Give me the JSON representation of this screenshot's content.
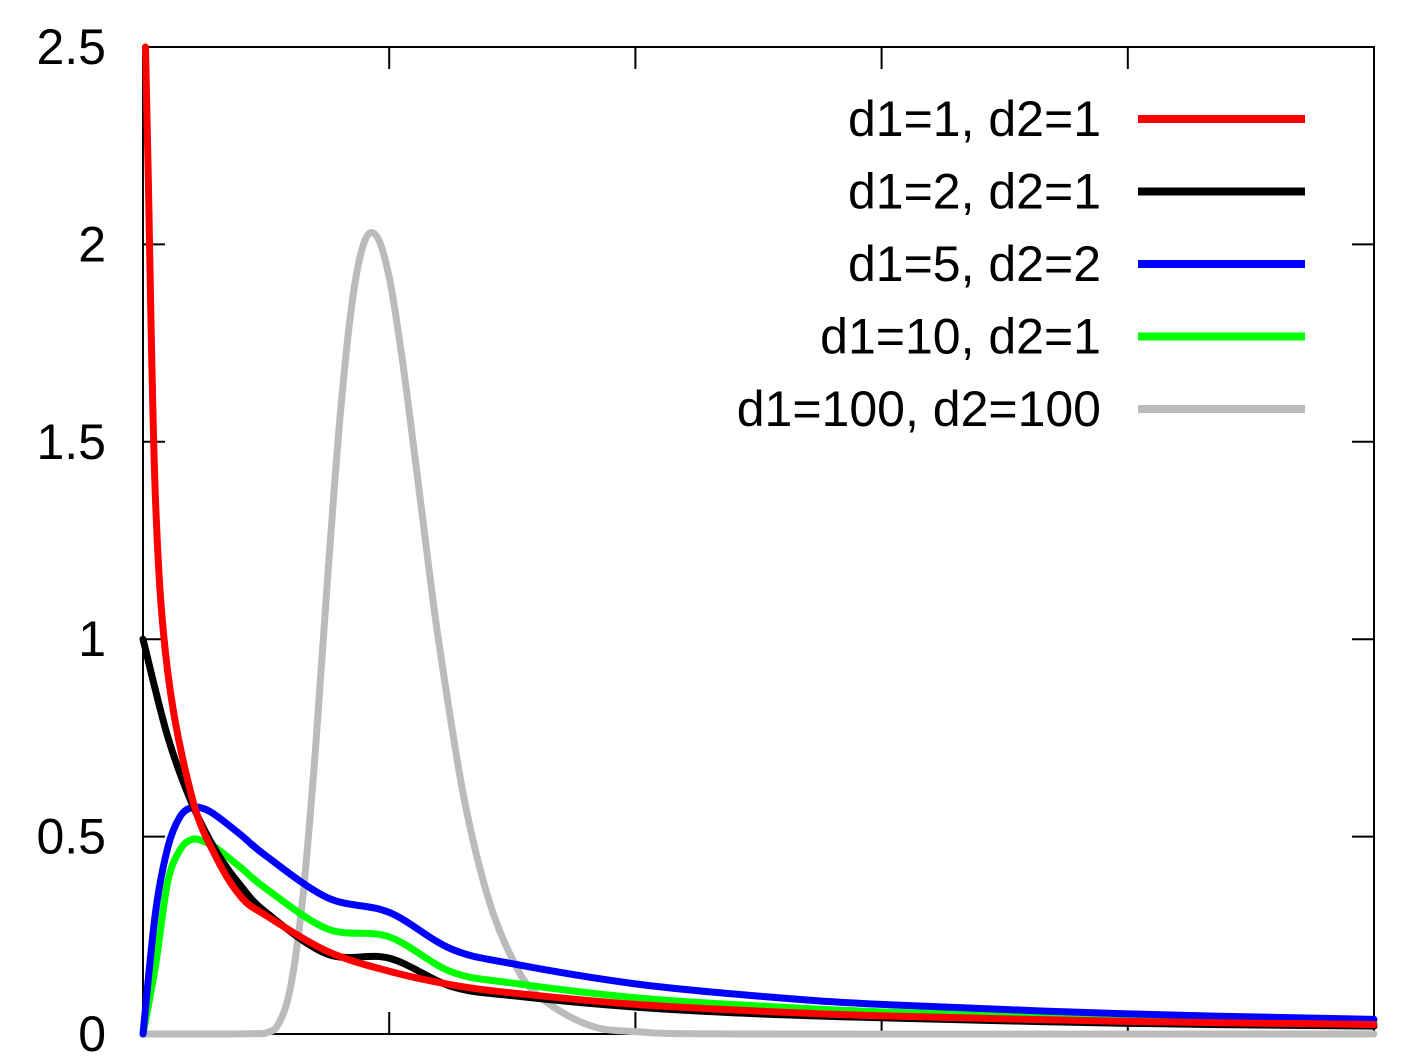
{
  "chart_data": {
    "type": "line",
    "title": "",
    "xlabel": "",
    "ylabel": "",
    "xlim": [
      0,
      5
    ],
    "ylim": [
      0,
      2.5
    ],
    "x_ticks": [
      0,
      1,
      2,
      3,
      4,
      5
    ],
    "y_ticks": [
      0,
      0.5,
      1,
      1.5,
      2,
      2.5
    ],
    "y_tick_labels": [
      "0",
      "0.5",
      "1",
      "1.5",
      "2",
      "2.5"
    ],
    "grid": false,
    "legend_position": "top-right",
    "series": [
      {
        "name": "d1=1, d2=1",
        "color": "#ff0000",
        "points": [
          [
            0.01,
            3.152
          ],
          [
            0.02,
            2.214
          ],
          [
            0.05,
            1.366
          ],
          [
            0.1,
            0.919
          ],
          [
            0.2,
            0.597
          ],
          [
            0.3,
            0.444
          ],
          [
            0.4,
            0.346
          ],
          [
            0.5,
            0.3
          ],
          [
            0.75,
            0.209
          ],
          [
            1.0,
            0.159
          ],
          [
            1.25,
            0.125
          ],
          [
            1.5,
            0.104
          ],
          [
            2.0,
            0.075
          ],
          [
            2.5,
            0.058
          ],
          [
            3.0,
            0.046
          ],
          [
            4.0,
            0.032
          ],
          [
            5.0,
            0.024
          ]
        ]
      },
      {
        "name": "d1=2, d2=1",
        "color": "#000000",
        "points": [
          [
            0,
            1.0
          ],
          [
            0.1,
            0.754
          ],
          [
            0.2,
            0.582
          ],
          [
            0.3,
            0.46
          ],
          [
            0.4,
            0.373
          ],
          [
            0.5,
            0.308
          ],
          [
            0.75,
            0.202
          ],
          [
            1.0,
            0.192
          ],
          [
            1.25,
            0.121
          ],
          [
            1.5,
            0.097
          ],
          [
            2.0,
            0.068
          ],
          [
            2.5,
            0.051
          ],
          [
            3.0,
            0.041
          ],
          [
            4.0,
            0.027
          ],
          [
            5.0,
            0.02
          ]
        ]
      },
      {
        "name": "d1=5, d2=2",
        "color": "#0000ff",
        "points": [
          [
            0,
            0
          ],
          [
            0.05,
            0.304
          ],
          [
            0.1,
            0.471
          ],
          [
            0.15,
            0.55
          ],
          [
            0.2,
            0.574
          ],
          [
            0.25,
            0.57
          ],
          [
            0.3,
            0.552
          ],
          [
            0.4,
            0.503
          ],
          [
            0.5,
            0.451
          ],
          [
            0.75,
            0.345
          ],
          [
            1.0,
            0.308
          ],
          [
            1.25,
            0.216
          ],
          [
            1.5,
            0.178
          ],
          [
            2.0,
            0.127
          ],
          [
            2.5,
            0.096
          ],
          [
            3.0,
            0.075
          ],
          [
            4.0,
            0.051
          ],
          [
            5.0,
            0.037
          ]
        ]
      },
      {
        "name": "d1=10, d2=1",
        "color": "#00ff00",
        "points": [
          [
            0,
            0
          ],
          [
            0.05,
            0.17
          ],
          [
            0.1,
            0.384
          ],
          [
            0.15,
            0.466
          ],
          [
            0.2,
            0.493
          ],
          [
            0.25,
            0.487
          ],
          [
            0.3,
            0.47
          ],
          [
            0.4,
            0.42
          ],
          [
            0.5,
            0.368
          ],
          [
            0.75,
            0.266
          ],
          [
            1.0,
            0.246
          ],
          [
            1.25,
            0.158
          ],
          [
            1.5,
            0.129
          ],
          [
            2.0,
            0.092
          ],
          [
            2.5,
            0.071
          ],
          [
            3.0,
            0.056
          ],
          [
            4.0,
            0.039
          ],
          [
            5.0,
            0.028
          ]
        ]
      },
      {
        "name": "d1=100, d2=100",
        "color": "#bbbbbb",
        "points": [
          [
            0,
            0
          ],
          [
            0.3,
            0
          ],
          [
            0.45,
            0.001
          ],
          [
            0.5,
            0.003
          ],
          [
            0.55,
            0.025
          ],
          [
            0.6,
            0.121
          ],
          [
            0.65,
            0.352
          ],
          [
            0.7,
            0.717
          ],
          [
            0.75,
            1.156
          ],
          [
            0.8,
            1.56
          ],
          [
            0.85,
            1.856
          ],
          [
            0.9,
            2.008
          ],
          [
            0.95,
            2.02
          ],
          [
            1.0,
            1.917
          ],
          [
            1.05,
            1.723
          ],
          [
            1.1,
            1.484
          ],
          [
            1.15,
            1.236
          ],
          [
            1.2,
            0.999
          ],
          [
            1.3,
            0.61
          ],
          [
            1.4,
            0.349
          ],
          [
            1.5,
            0.19
          ],
          [
            1.6,
            0.1
          ],
          [
            1.8,
            0.025
          ],
          [
            2.0,
            0.006
          ],
          [
            2.5,
            0
          ],
          [
            5.0,
            0
          ]
        ]
      }
    ]
  }
}
